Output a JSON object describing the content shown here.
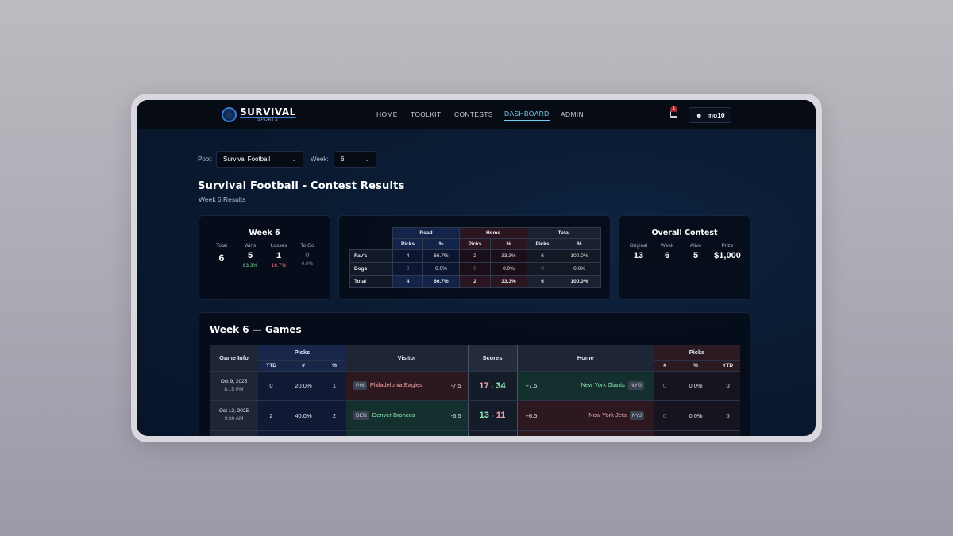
{
  "app": {
    "logo_top": "SURVIVAL",
    "logo_bottom": "SPORTS"
  },
  "nav": {
    "items": [
      "HOME",
      "TOOLKIT",
      "CONTESTS",
      "DASHBOARD",
      "ADMIN"
    ],
    "active": "DASHBOARD",
    "notifications": "1",
    "user": "mo10"
  },
  "filters": {
    "pool_label": "Pool:",
    "pool_value": "Survival Football",
    "week_label": "Week:",
    "week_value": "6"
  },
  "page": {
    "title": "Survival Football - Contest Results",
    "subtitle": "Week 6 Results"
  },
  "week_card": {
    "title": "Week 6",
    "stats": [
      {
        "label": "Total",
        "value": "6",
        "pct": ""
      },
      {
        "label": "Wins",
        "value": "5",
        "pct": "83.3%"
      },
      {
        "label": "Losses",
        "value": "1",
        "pct": "16.7%"
      },
      {
        "label": "To Go",
        "value": "0",
        "pct": "0.0%"
      }
    ]
  },
  "summary": {
    "groups": [
      "Road",
      "Home",
      "Total"
    ],
    "sub": [
      "Picks",
      "%"
    ],
    "rows": [
      {
        "label": "Fav's",
        "values": [
          "4",
          "66.7%",
          "2",
          "33.3%",
          "6",
          "100.0%"
        ]
      },
      {
        "label": "Dogs",
        "values": [
          "0",
          "0.0%",
          "0",
          "0.0%",
          "0",
          "0.0%"
        ]
      },
      {
        "label": "Total",
        "values": [
          "4",
          "66.7%",
          "2",
          "33.3%",
          "6",
          "100.0%"
        ]
      }
    ]
  },
  "overall": {
    "title": "Overall Contest",
    "stats": [
      {
        "label": "Original",
        "value": "13"
      },
      {
        "label": "Week",
        "value": "6"
      },
      {
        "label": "Alive",
        "value": "5"
      },
      {
        "label": "Prize",
        "value": "$1,000"
      }
    ]
  },
  "games": {
    "title": "Week 6 — Games",
    "headers": {
      "game_info": "Game Info",
      "picks": "Picks",
      "visitor": "Visitor",
      "scores": "Scores",
      "home": "Home",
      "left_sub": [
        "YTD",
        "#",
        "%"
      ],
      "right_sub": [
        "#",
        "%",
        "YTD"
      ]
    },
    "rows": [
      {
        "date": "Oct 9, 2025",
        "time": "8:15 PM",
        "l_ytd": "0",
        "l_pct": "20.0%",
        "l_num": "1",
        "v_abbr": "PHI",
        "v_name": "Philadelphia Eagles",
        "v_spread": "-7.5",
        "v_score": "17",
        "dash": "-",
        "h_score": "34",
        "h_spread": "+7.5",
        "h_name": "New York Giants",
        "h_abbr": "NYG",
        "r_num": "0",
        "r_pct": "0.0%",
        "r_ytd": "0",
        "winner": "home"
      },
      {
        "date": "Oct 12, 2025",
        "time": "9:30 AM",
        "l_ytd": "2",
        "l_pct": "40.0%",
        "l_num": "2",
        "v_abbr": "DEN",
        "v_name": "Denver Broncos",
        "v_spread": "-6.5",
        "v_score": "13",
        "dash": "-",
        "h_score": "11",
        "h_spread": "+6.5",
        "h_name": "New York Jets",
        "h_abbr": "NYJ",
        "r_num": "0",
        "r_pct": "0.0%",
        "r_ytd": "0",
        "winner": "visitor"
      }
    ]
  },
  "colors": {
    "accent": "#6fd0f0",
    "win": "#6fdc9a",
    "loss": "#f07c80"
  }
}
